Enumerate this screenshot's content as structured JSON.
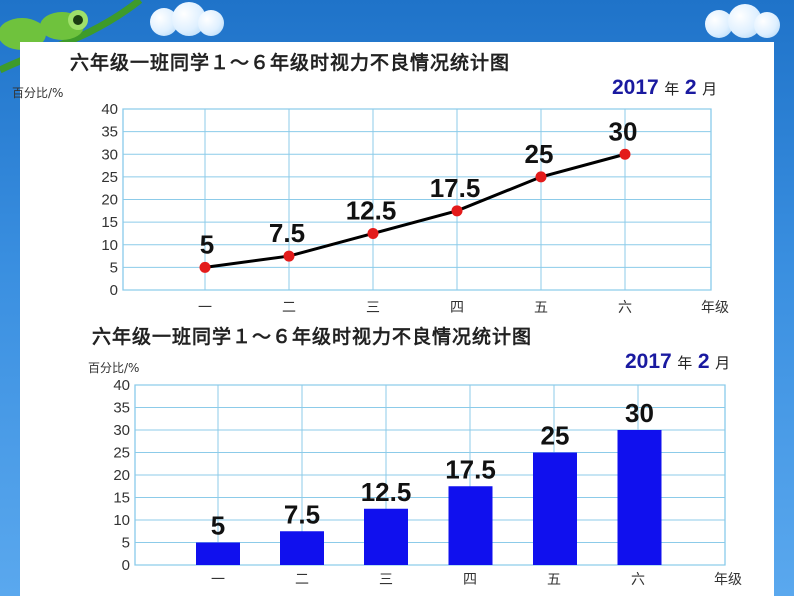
{
  "chart_data": [
    {
      "type": "line",
      "title": "六年级一班同学１～６年级时视力不良情况统计图",
      "date": {
        "year": "2017",
        "year_unit": "年",
        "month": "2",
        "month_unit": "月"
      },
      "ylabel": "百分比/%",
      "xlabel": "年级",
      "categories": [
        "一",
        "二",
        "三",
        "四",
        "五",
        "六"
      ],
      "values": [
        5,
        7.5,
        12.5,
        17.5,
        25,
        30
      ],
      "data_labels": [
        "5",
        "7.5",
        "12.5",
        "17.5",
        "25",
        "30"
      ],
      "ylim": [
        0,
        40
      ],
      "yticks": [
        "0",
        "5",
        "10",
        "15",
        "20",
        "25",
        "30",
        "35",
        "40"
      ],
      "grid": true,
      "colors": {
        "line": "#000000",
        "marker": "#e31b1b",
        "grid": "#8ccbe9"
      }
    },
    {
      "type": "bar",
      "title": "六年级一班同学１～６年级时视力不良情况统计图",
      "date": {
        "year": "2017",
        "year_unit": "年",
        "month": "2",
        "month_unit": "月"
      },
      "ylabel": "百分比/%",
      "xlabel": "年级",
      "categories": [
        "一",
        "二",
        "三",
        "四",
        "五",
        "六"
      ],
      "values": [
        5,
        7.5,
        12.5,
        17.5,
        25,
        30
      ],
      "data_labels": [
        "5",
        "7.5",
        "12.5",
        "17.5",
        "25",
        "30"
      ],
      "ylim": [
        0,
        40
      ],
      "yticks": [
        "0",
        "5",
        "10",
        "15",
        "20",
        "25",
        "30",
        "35",
        "40"
      ],
      "grid": true,
      "colors": {
        "bar": "#1010ee",
        "grid": "#8ccbe9"
      }
    }
  ]
}
